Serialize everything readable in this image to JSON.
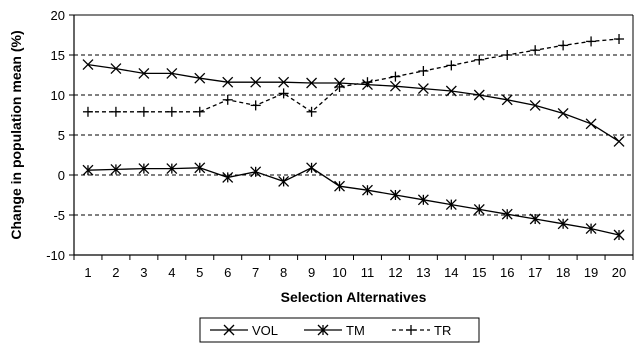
{
  "chart_data": {
    "type": "line",
    "xlabel": "Selection Alternatives",
    "ylabel": "Change in population mean (%)",
    "ylim": [
      -10,
      20
    ],
    "y_ticks": [
      -10,
      -5,
      0,
      5,
      10,
      15,
      20
    ],
    "grid": "horizontal dashed",
    "legend_position": "bottom",
    "x": [
      1,
      2,
      3,
      4,
      5,
      6,
      7,
      8,
      9,
      10,
      11,
      12,
      13,
      14,
      15,
      16,
      17,
      18,
      19,
      20
    ],
    "series": [
      {
        "name": "VOL",
        "marker": "x",
        "line": "solid",
        "values": [
          13.8,
          13.3,
          12.7,
          12.7,
          12.1,
          11.6,
          11.6,
          11.6,
          11.5,
          11.5,
          11.3,
          11.1,
          10.8,
          10.5,
          10.0,
          9.4,
          8.7,
          7.7,
          6.4,
          4.2
        ]
      },
      {
        "name": "TM",
        "marker": "asterisk",
        "line": "solid",
        "values": [
          0.6,
          0.7,
          0.8,
          0.8,
          0.9,
          -0.3,
          0.4,
          -0.8,
          0.9,
          -1.4,
          -1.9,
          -2.5,
          -3.1,
          -3.7,
          -4.3,
          -4.9,
          -5.5,
          -6.1,
          -6.7,
          -7.5
        ]
      },
      {
        "name": "TR",
        "marker": "plus",
        "line": "dashed",
        "values": [
          7.9,
          7.9,
          7.9,
          7.9,
          7.9,
          9.4,
          8.7,
          10.2,
          7.9,
          11.0,
          11.6,
          12.3,
          13.0,
          13.7,
          14.4,
          15.0,
          15.6,
          16.2,
          16.7,
          17.0
        ]
      }
    ]
  }
}
